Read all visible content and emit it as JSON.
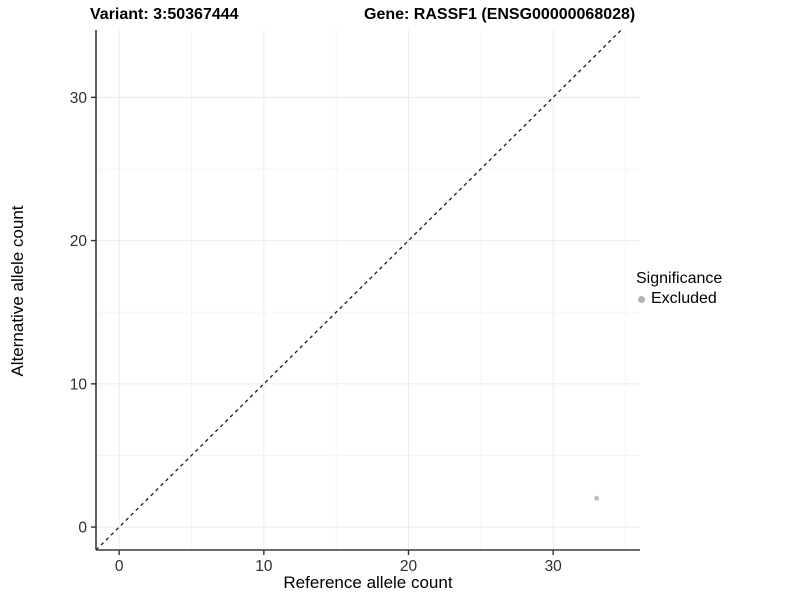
{
  "header": {
    "variant_title": "Variant: 3:50367444",
    "gene_title": "Gene: RASSF1 (ENSG00000068028)"
  },
  "chart_data": {
    "type": "scatter",
    "title": "Variant: 3:50367444  /  Gene: RASSF1 (ENSG00000068028)",
    "xlabel": "Reference allele count",
    "ylabel": "Alternative allele count",
    "xlim": [
      -1.6,
      36.0
    ],
    "ylim": [
      -1.6,
      34.7
    ],
    "xticks": [
      0,
      10,
      20,
      30
    ],
    "yticks": [
      0,
      10,
      20,
      30
    ],
    "minor_xticks": [
      5,
      15,
      25,
      35
    ],
    "minor_yticks": [
      5,
      15,
      25
    ],
    "grid": "major and minor gridlines, very light grey on white",
    "series": [
      {
        "name": "Excluded",
        "color": "#c2c2c2",
        "points": [
          {
            "x": 33,
            "y": 2
          }
        ]
      }
    ],
    "reference_line": {
      "kind": "identity y=x",
      "style": "dashed",
      "color": "#1a1a1a"
    },
    "legend": {
      "title": "Significance",
      "position": "right",
      "items": [
        {
          "label": "Excluded",
          "color": "#b3b3b3"
        }
      ]
    }
  },
  "style_colors": {
    "axis_line": "#3c3c3c",
    "tick_mark": "#333333",
    "tick_label": "#303030",
    "major_grid": "#ececec",
    "minor_grid": "#f5f5f5",
    "background": "#ffffff"
  }
}
